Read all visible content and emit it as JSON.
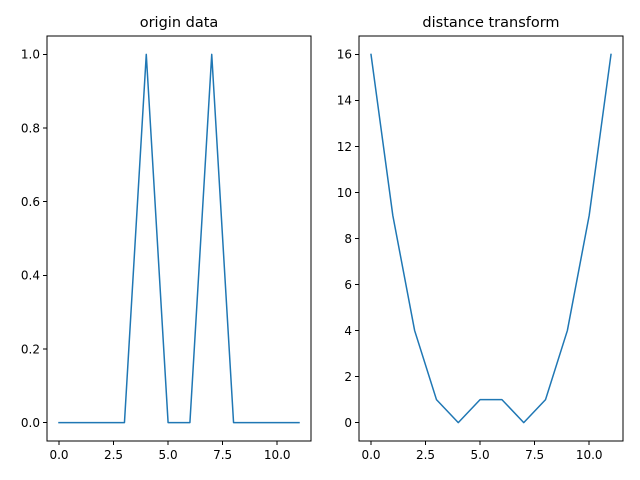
{
  "chart_data": [
    {
      "type": "line",
      "title": "origin data",
      "xlabel": "",
      "ylabel": "",
      "xlim": [
        -0.55,
        11.55
      ],
      "ylim": [
        -0.05,
        1.05
      ],
      "xticks": [
        0,
        2.5,
        5,
        7.5,
        10
      ],
      "xtick_labels": [
        "0.0",
        "2.5",
        "5.0",
        "7.5",
        "10.0"
      ],
      "yticks": [
        0,
        0.2,
        0.4,
        0.6,
        0.8,
        1.0
      ],
      "ytick_labels": [
        "0.0",
        "0.2",
        "0.4",
        "0.6",
        "0.8",
        "1.0"
      ],
      "grid": false,
      "series": [
        {
          "color": "#1f77b4",
          "x": [
            0,
            1,
            2,
            3,
            4,
            5,
            6,
            7,
            8,
            9,
            10,
            11
          ],
          "values": [
            0,
            0,
            0,
            0,
            1,
            0,
            0,
            1,
            0,
            0,
            0,
            0
          ]
        }
      ]
    },
    {
      "type": "line",
      "title": "distance transform",
      "xlabel": "",
      "ylabel": "",
      "xlim": [
        -0.55,
        11.55
      ],
      "ylim": [
        -0.8,
        16.8
      ],
      "xticks": [
        0,
        2.5,
        5,
        7.5,
        10
      ],
      "xtick_labels": [
        "0.0",
        "2.5",
        "5.0",
        "7.5",
        "10.0"
      ],
      "yticks": [
        0,
        2,
        4,
        6,
        8,
        10,
        12,
        14,
        16
      ],
      "ytick_labels": [
        "0",
        "2",
        "4",
        "6",
        "8",
        "10",
        "12",
        "14",
        "16"
      ],
      "grid": false,
      "series": [
        {
          "color": "#1f77b4",
          "x": [
            0,
            1,
            2,
            3,
            4,
            5,
            6,
            7,
            8,
            9,
            10,
            11
          ],
          "values": [
            16,
            9,
            4,
            1,
            0,
            1,
            1,
            0,
            1,
            4,
            9,
            16
          ]
        }
      ]
    }
  ]
}
